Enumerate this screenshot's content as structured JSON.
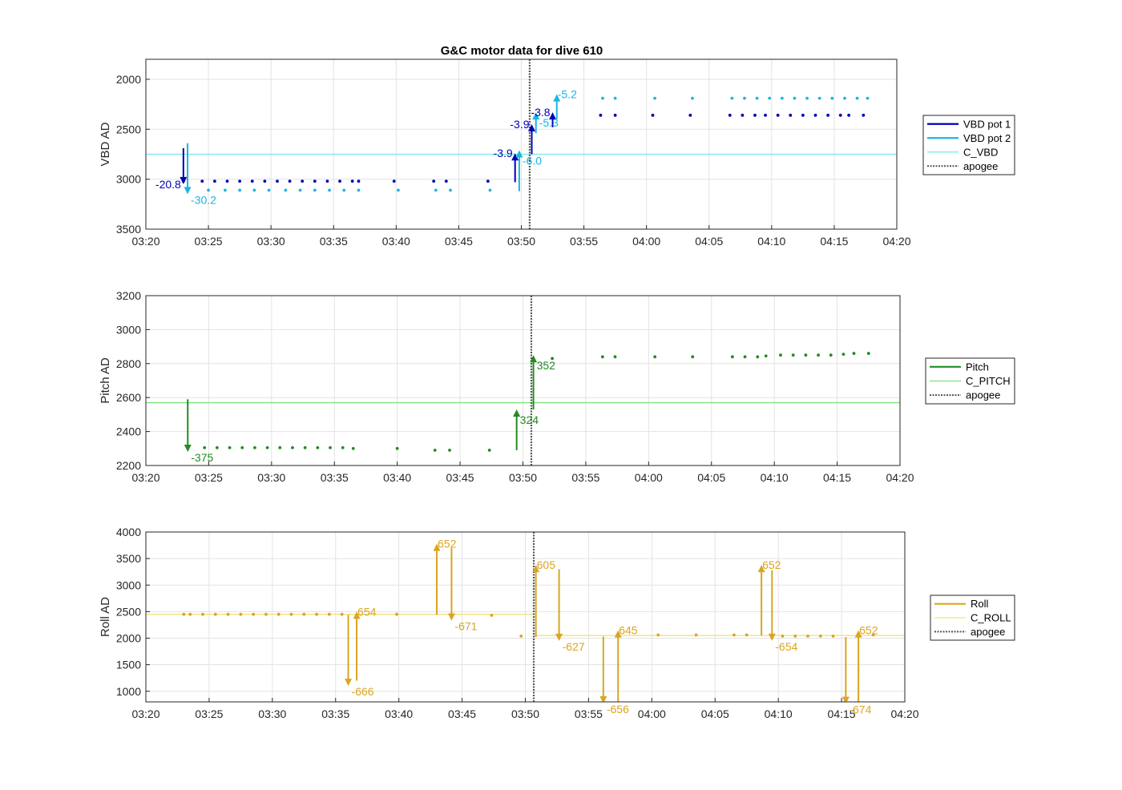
{
  "title": "G&C motor data for dive 610",
  "colors": {
    "vbd_pot1": "#0000b4",
    "vbd_pot2": "#1bb5e0",
    "c_vbd": "#7fe6ec",
    "pitch": "#228b22",
    "c_pitch": "#7ee27e",
    "roll": "#daa520",
    "c_roll": "#f2e27a",
    "apogee": "#555555"
  },
  "chart_data": [
    {
      "id": "vbd",
      "type": "scatter",
      "ylabel": "VBD AD",
      "ylim": [
        1800,
        3500
      ],
      "y_reversed": true,
      "yticks": [
        2000,
        2500,
        3000,
        3500
      ],
      "xlim": [
        "03:20",
        "04:20"
      ],
      "xticks": [
        "03:20",
        "03:25",
        "03:30",
        "03:35",
        "03:40",
        "03:45",
        "03:50",
        "03:55",
        "04:00",
        "04:05",
        "04:10",
        "04:15",
        "04:20"
      ],
      "grid": true,
      "legend_position": "outside-right",
      "legend": [
        "VBD pot 1",
        "VBD pot 2",
        "C_VBD",
        "apogee"
      ],
      "reference_line": {
        "name": "C_VBD",
        "y": 2750
      },
      "apogee_x": "03:50:40",
      "series": [
        {
          "name": "VBD pot 1",
          "color_key": "vbd_pot1",
          "x": [
            "03:23:00",
            "03:24:30",
            "03:25:30",
            "03:26:30",
            "03:27:30",
            "03:28:30",
            "03:29:30",
            "03:30:30",
            "03:31:30",
            "03:32:30",
            "03:33:30",
            "03:34:30",
            "03:35:30",
            "03:36:30",
            "03:37:00",
            "03:39:50",
            "03:43:00",
            "03:44:00",
            "03:47:20",
            "03:56:20",
            "03:57:30",
            "04:00:30",
            "04:03:30",
            "04:06:40",
            "04:07:40",
            "04:08:40",
            "04:09:30",
            "04:10:30",
            "04:11:30",
            "04:12:30",
            "04:13:30",
            "04:14:30",
            "04:15:30",
            "04:16:10",
            "04:17:20"
          ],
          "y": [
            3020,
            3020,
            3020,
            3020,
            3020,
            3020,
            3020,
            3020,
            3020,
            3020,
            3020,
            3020,
            3020,
            3020,
            3020,
            3020,
            3020,
            3020,
            3020,
            2360,
            2360,
            2360,
            2360,
            2360,
            2360,
            2360,
            2360,
            2360,
            2360,
            2360,
            2360,
            2360,
            2360,
            2360,
            2360
          ]
        },
        {
          "name": "VBD pot 2",
          "color_key": "vbd_pot2",
          "x": [
            "03:23:20",
            "03:25:00",
            "03:26:20",
            "03:27:30",
            "03:28:40",
            "03:29:50",
            "03:31:10",
            "03:32:20",
            "03:33:30",
            "03:34:40",
            "03:35:50",
            "03:37:00",
            "03:40:10",
            "03:43:10",
            "03:44:20",
            "03:47:30",
            "03:56:30",
            "03:57:30",
            "04:00:40",
            "04:03:40",
            "04:06:50",
            "04:07:50",
            "04:08:50",
            "04:09:50",
            "04:10:50",
            "04:11:50",
            "04:12:50",
            "04:13:50",
            "04:14:50",
            "04:15:50",
            "04:16:50",
            "04:17:40"
          ],
          "y": [
            3110,
            3110,
            3110,
            3110,
            3110,
            3110,
            3110,
            3110,
            3110,
            3110,
            3110,
            3110,
            3110,
            3110,
            3110,
            3110,
            2190,
            2190,
            2190,
            2190,
            2190,
            2190,
            2190,
            2190,
            2190,
            2190,
            2190,
            2190,
            2190,
            2190,
            2190,
            2190
          ]
        }
      ],
      "moves": [
        {
          "series": "VBD pot 1",
          "x": "03:23:00",
          "y_from": 2690,
          "y_to": 3050,
          "label": "-20.8",
          "label_side": "left"
        },
        {
          "series": "VBD pot 2",
          "x": "03:23:20",
          "y_from": 2640,
          "y_to": 3150,
          "label": "-30.2",
          "label_side": "right-below"
        },
        {
          "series": "VBD pot 1",
          "x": "03:49:30",
          "y_from": 3030,
          "y_to": 2740,
          "label": "-3.9",
          "label_side": "left"
        },
        {
          "series": "VBD pot 2",
          "x": "03:49:50",
          "y_from": 3120,
          "y_to": 2710,
          "label": "-6.0",
          "label_side": "right-below"
        },
        {
          "series": "VBD pot 1",
          "x": "03:50:50",
          "y_from": 2750,
          "y_to": 2450,
          "label": "-3.9",
          "label_side": "left"
        },
        {
          "series": "VBD pot 2",
          "x": "03:51:10",
          "y_from": 2540,
          "y_to": 2330,
          "label": "-5.3",
          "label_side": "right-below"
        },
        {
          "series": "VBD pot 1",
          "x": "03:52:30",
          "y_from": 2480,
          "y_to": 2330,
          "label": "-3.8",
          "label_side": "left"
        },
        {
          "series": "VBD pot 2",
          "x": "03:52:50",
          "y_from": 2400,
          "y_to": 2150,
          "label": "-5.2",
          "label_side": "right"
        }
      ]
    },
    {
      "id": "pitch",
      "type": "scatter",
      "ylabel": "Pitch AD",
      "ylim": [
        2200,
        3200
      ],
      "yticks": [
        2200,
        2400,
        2600,
        2800,
        3000,
        3200
      ],
      "xlim": [
        "03:20",
        "04:20"
      ],
      "xticks": [
        "03:20",
        "03:25",
        "03:30",
        "03:35",
        "03:40",
        "03:45",
        "03:50",
        "03:55",
        "04:00",
        "04:05",
        "04:10",
        "04:15",
        "04:20"
      ],
      "grid": true,
      "legend_position": "outside-right",
      "legend": [
        "Pitch",
        "C_PITCH",
        "apogee"
      ],
      "reference_line": {
        "name": "C_PITCH",
        "y": 2570
      },
      "apogee_x": "03:50:40",
      "series": [
        {
          "name": "Pitch",
          "color_key": "pitch",
          "x": [
            "03:24:40",
            "03:25:40",
            "03:26:40",
            "03:27:40",
            "03:28:40",
            "03:29:40",
            "03:30:40",
            "03:31:40",
            "03:32:40",
            "03:33:40",
            "03:34:40",
            "03:35:40",
            "03:36:30",
            "03:40:00",
            "03:43:00",
            "03:44:10",
            "03:47:20",
            "03:52:20",
            "03:56:20",
            "03:57:20",
            "04:00:30",
            "04:03:30",
            "04:06:40",
            "04:07:40",
            "04:08:40",
            "04:09:20",
            "04:10:30",
            "04:11:30",
            "04:12:30",
            "04:13:30",
            "04:14:30",
            "04:15:30",
            "04:16:20",
            "04:17:30"
          ],
          "y": [
            2305,
            2305,
            2305,
            2305,
            2305,
            2305,
            2305,
            2305,
            2305,
            2305,
            2305,
            2305,
            2300,
            2300,
            2290,
            2290,
            2290,
            2830,
            2840,
            2840,
            2840,
            2840,
            2840,
            2840,
            2840,
            2845,
            2850,
            2850,
            2850,
            2850,
            2850,
            2855,
            2860,
            2860
          ]
        }
      ],
      "moves": [
        {
          "series": "Pitch",
          "x": "03:23:20",
          "y_from": 2590,
          "y_to": 2280,
          "label": "-375",
          "label_side": "right-below"
        },
        {
          "series": "Pitch",
          "x": "03:49:30",
          "y_from": 2290,
          "y_to": 2530,
          "label": "324",
          "label_side": "right-below"
        },
        {
          "series": "Pitch",
          "x": "03:50:50",
          "y_from": 2530,
          "y_to": 2850,
          "label": "352",
          "label_side": "right-below"
        }
      ]
    },
    {
      "id": "roll",
      "type": "scatter",
      "ylabel": "Roll AD",
      "ylim": [
        800,
        4000
      ],
      "yticks": [
        1000,
        1500,
        2000,
        2500,
        3000,
        3500,
        4000
      ],
      "xlim": [
        "03:20",
        "04:20"
      ],
      "xticks": [
        "03:20",
        "03:25",
        "03:30",
        "03:35",
        "03:40",
        "03:45",
        "03:50",
        "03:55",
        "04:00",
        "04:05",
        "04:10",
        "04:15",
        "04:20"
      ],
      "grid": true,
      "legend_position": "outside-right",
      "legend": [
        "Roll",
        "C_ROLL",
        "apogee"
      ],
      "reference_lines": [
        {
          "name": "C_ROLL",
          "y": 2450,
          "x_from": "03:20",
          "x_to": "03:50:40"
        },
        {
          "name": "C_ROLL",
          "y": 2050,
          "x_from": "03:50:40",
          "x_to": "04:20"
        }
      ],
      "apogee_x": "03:50:40",
      "series": [
        {
          "name": "Roll",
          "color_key": "roll",
          "x": [
            "03:23:00",
            "03:23:30",
            "03:24:30",
            "03:25:30",
            "03:26:30",
            "03:27:30",
            "03:28:30",
            "03:29:30",
            "03:30:30",
            "03:31:30",
            "03:32:30",
            "03:33:30",
            "03:34:30",
            "03:35:30",
            "03:39:50",
            "03:47:20",
            "03:49:40",
            "04:00:30",
            "04:03:30",
            "04:06:30",
            "04:07:30",
            "04:10:20",
            "04:11:20",
            "04:12:20",
            "04:13:20",
            "04:14:20",
            "04:17:30"
          ],
          "y": [
            2450,
            2450,
            2450,
            2450,
            2450,
            2450,
            2450,
            2450,
            2450,
            2450,
            2450,
            2450,
            2450,
            2450,
            2450,
            2430,
            2040,
            2060,
            2060,
            2060,
            2060,
            2040,
            2040,
            2040,
            2040,
            2040,
            2060
          ]
        }
      ],
      "moves": [
        {
          "series": "Roll",
          "x": "03:36:00",
          "y_from": 2440,
          "y_to": 1100,
          "label": "-666",
          "label_side": "right-below"
        },
        {
          "series": "Roll",
          "x": "03:36:40",
          "y_from": 1200,
          "y_to": 2500,
          "label": "654",
          "label_side": "right"
        },
        {
          "series": "Roll",
          "x": "03:43:00",
          "y_from": 2440,
          "y_to": 3780,
          "label": "652",
          "label_side": "right"
        },
        {
          "series": "Roll",
          "x": "03:44:10",
          "y_from": 3700,
          "y_to": 2330,
          "label": "-671",
          "label_side": "right-below"
        },
        {
          "series": "Roll",
          "x": "03:50:50",
          "y_from": 2020,
          "y_to": 3380,
          "label": "605",
          "label_side": "right"
        },
        {
          "series": "Roll",
          "x": "03:52:40",
          "y_from": 3300,
          "y_to": 1950,
          "label": "-627",
          "label_side": "right-below"
        },
        {
          "series": "Roll",
          "x": "03:56:10",
          "y_from": 2030,
          "y_to": 770,
          "label": "-656",
          "label_side": "right-below"
        },
        {
          "series": "Roll",
          "x": "03:57:20",
          "y_from": 800,
          "y_to": 2150,
          "label": "645",
          "label_side": "right"
        },
        {
          "series": "Roll",
          "x": "04:08:40",
          "y_from": 2050,
          "y_to": 3380,
          "label": "652",
          "label_side": "right"
        },
        {
          "series": "Roll",
          "x": "04:09:30",
          "y_from": 3280,
          "y_to": 1950,
          "label": "-654",
          "label_side": "right-below"
        },
        {
          "series": "Roll",
          "x": "04:15:20",
          "y_from": 2020,
          "y_to": 760,
          "label": "-674",
          "label_side": "right-below"
        },
        {
          "series": "Roll",
          "x": "04:16:20",
          "y_from": 800,
          "y_to": 2150,
          "label": "652",
          "label_side": "right"
        }
      ]
    }
  ]
}
